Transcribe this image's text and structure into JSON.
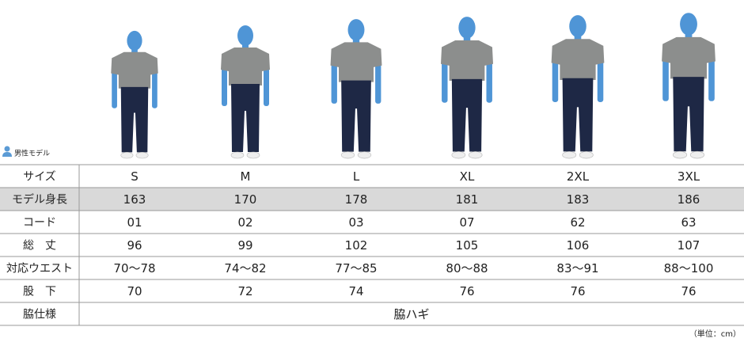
{
  "legend": "男性モデル",
  "table": {
    "rows": [
      {
        "label": "サイズ",
        "cells": [
          "S",
          "M",
          "L",
          "XL",
          "2XL",
          "3XL"
        ]
      },
      {
        "label": "モデル身長",
        "cells": [
          163,
          170,
          178,
          181,
          183,
          186
        ]
      },
      {
        "label": "コード",
        "cells": [
          "01",
          "02",
          "03",
          "07",
          "62",
          "63"
        ]
      },
      {
        "label": "総　丈",
        "cells": [
          96,
          99,
          102,
          105,
          106,
          107
        ]
      },
      {
        "label": "対応ウエスト",
        "cells": [
          "70〜78",
          "74〜82",
          "77〜85",
          "80〜88",
          "83〜91",
          "88〜100"
        ]
      },
      {
        "label": "股　下",
        "cells": [
          70,
          72,
          74,
          76,
          76,
          76
        ]
      },
      {
        "label": "脇仕様",
        "cells": [
          "脇ハギ"
        ]
      }
    ]
  },
  "unit_note": "（単位：cm）"
}
